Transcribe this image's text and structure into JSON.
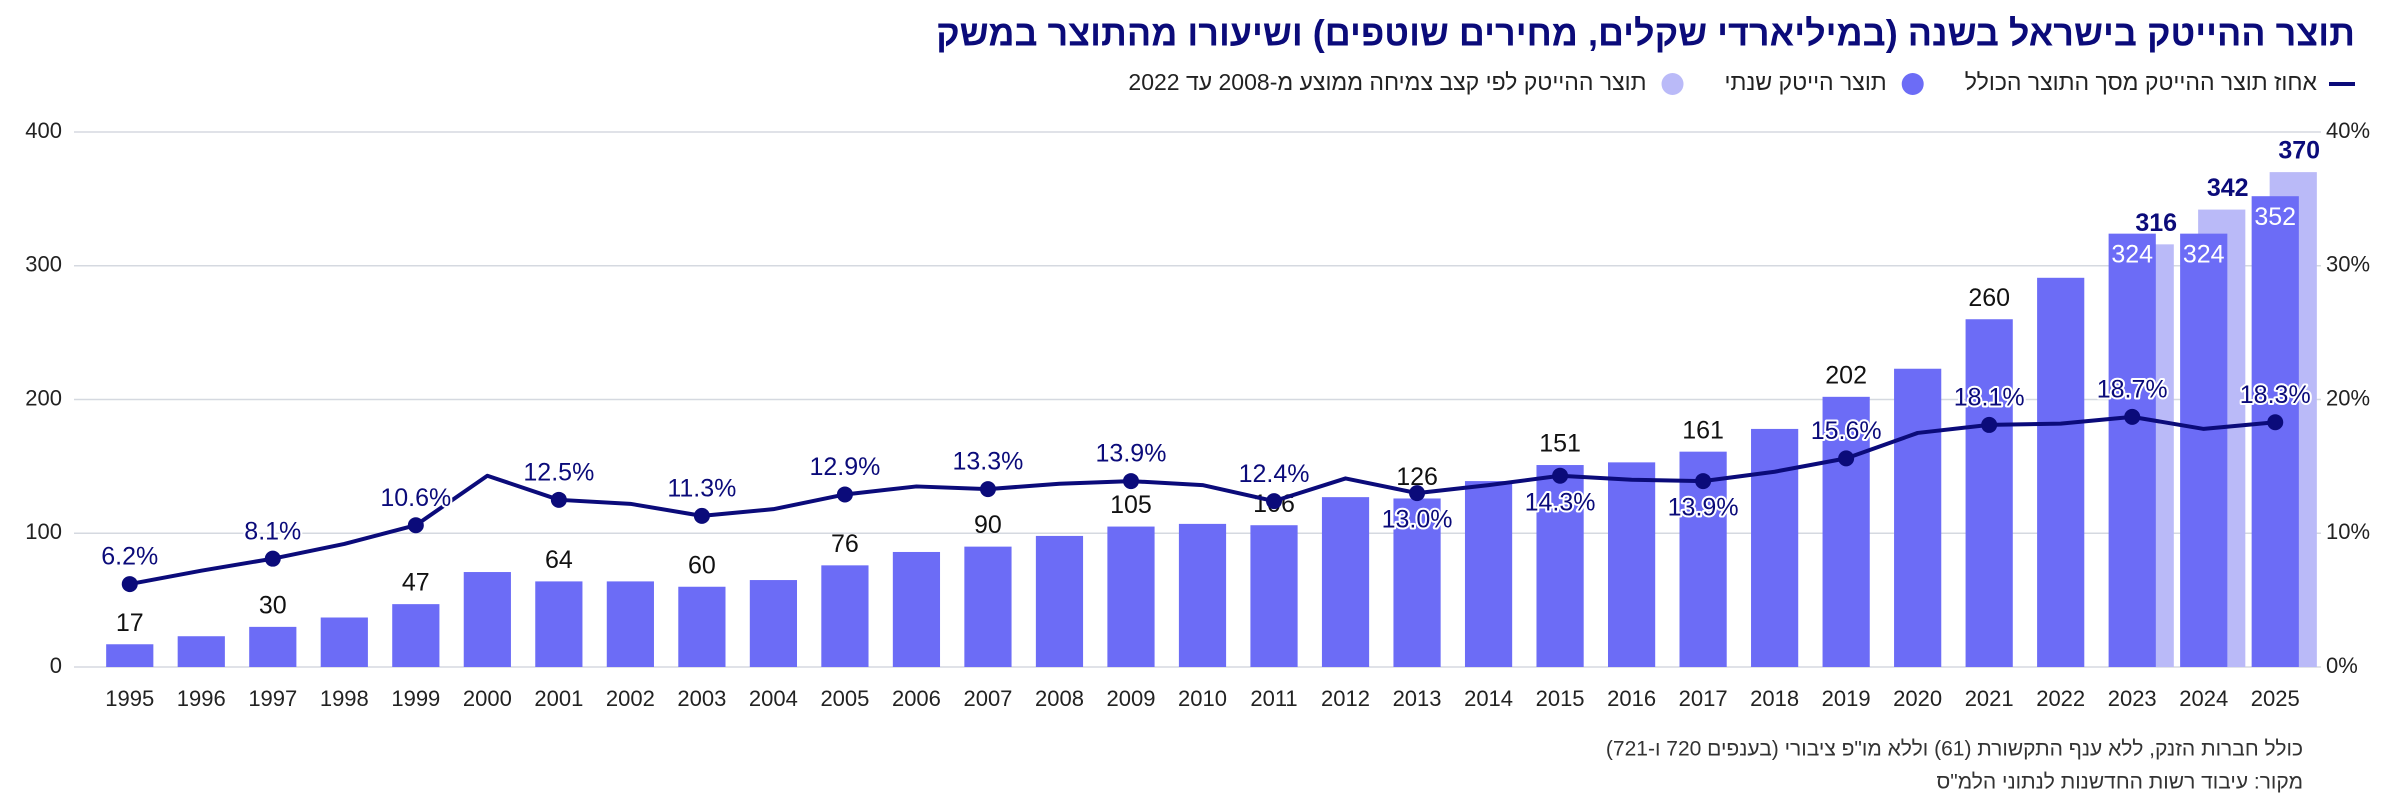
{
  "chart_data": {
    "type": "bar",
    "title": "תוצר ההייטק בישראל בשנה (במיליארדי שקלים, מחירים שוטפים) ושיעורו מהתוצר במשק",
    "notes": [
      "כולל חברות הזנק, ללא ענף התקשורת (61) וללא מו\"פ ציבורי (בענפים 720 ו-721)",
      "מקור: עיבוד רשות החדשנות לנתוני הלמ\"ס"
    ],
    "categories": [
      "1995",
      "1996",
      "1997",
      "1998",
      "1999",
      "2000",
      "2001",
      "2002",
      "2003",
      "2004",
      "2005",
      "2006",
      "2007",
      "2008",
      "2009",
      "2010",
      "2011",
      "2012",
      "2013",
      "2014",
      "2015",
      "2016",
      "2017",
      "2018",
      "2019",
      "2020",
      "2021",
      "2022",
      "2023",
      "2024",
      "2025"
    ],
    "series": [
      {
        "name": "אחוז תוצר ההייטק מסך התוצר הכולל",
        "type": "line",
        "axis": "y2",
        "color": "#0b0b7a",
        "values": [
          6.2,
          7.2,
          8.1,
          9.2,
          10.6,
          14.3,
          12.5,
          12.2,
          11.3,
          11.8,
          12.9,
          13.5,
          13.3,
          13.7,
          13.9,
          13.6,
          12.4,
          14.1,
          13.0,
          13.6,
          14.3,
          14.0,
          13.9,
          14.6,
          15.6,
          17.5,
          18.1,
          18.2,
          18.7,
          17.8,
          18.3
        ],
        "value_labels": [
          "6.2%",
          null,
          "8.1%",
          null,
          "10.6%",
          null,
          "12.5%",
          null,
          "11.3%",
          null,
          "12.9%",
          null,
          "13.3%",
          null,
          "13.9%",
          null,
          "12.4%",
          null,
          "13.0%",
          null,
          "14.3%",
          null,
          "13.9%",
          null,
          "15.6%",
          null,
          "18.1%",
          null,
          "18.7%",
          null,
          "18.3%"
        ]
      },
      {
        "name": "תוצר הייטק שנתי",
        "type": "bar",
        "color": "#6c6cf6",
        "values": [
          17,
          23,
          30,
          37,
          47,
          71,
          64,
          64,
          60,
          65,
          76,
          86,
          90,
          98,
          105,
          107,
          106,
          127,
          126,
          139,
          151,
          153,
          161,
          178,
          202,
          223,
          260,
          291,
          324,
          324,
          352
        ],
        "value_labels": [
          "17",
          null,
          "30",
          null,
          "47",
          null,
          "64",
          null,
          "60",
          null,
          "76",
          null,
          "90",
          null,
          "105",
          null,
          "106",
          null,
          "126",
          null,
          "151",
          null,
          "161",
          null,
          "202",
          null,
          "260",
          null,
          "324",
          "324",
          "352"
        ]
      },
      {
        "name": "תוצר ההייטק לפי קצב צמיחה ממוצע מ-2008 עד 2022",
        "type": "bar",
        "color": "#babaf8",
        "values": [
          null,
          null,
          null,
          null,
          null,
          null,
          null,
          null,
          null,
          null,
          null,
          null,
          null,
          null,
          null,
          null,
          null,
          null,
          null,
          null,
          null,
          null,
          null,
          null,
          null,
          null,
          null,
          null,
          316,
          342,
          370
        ],
        "value_labels": [
          null,
          null,
          null,
          null,
          null,
          null,
          null,
          null,
          null,
          null,
          null,
          null,
          null,
          null,
          null,
          null,
          null,
          null,
          null,
          null,
          null,
          null,
          null,
          null,
          null,
          null,
          null,
          null,
          "316",
          "342",
          "370"
        ]
      }
    ],
    "ylim": [
      0,
      400
    ],
    "yticks": [
      0,
      100,
      200,
      300,
      400
    ],
    "y2lim": [
      0,
      40
    ],
    "y2ticks": [
      {
        "value": 0,
        "label": "0%"
      },
      {
        "value": 10,
        "label": "10%"
      },
      {
        "value": 20,
        "label": "20%"
      },
      {
        "value": 30,
        "label": "30%"
      },
      {
        "value": 40,
        "label": "40%"
      }
    ],
    "grid": true
  }
}
